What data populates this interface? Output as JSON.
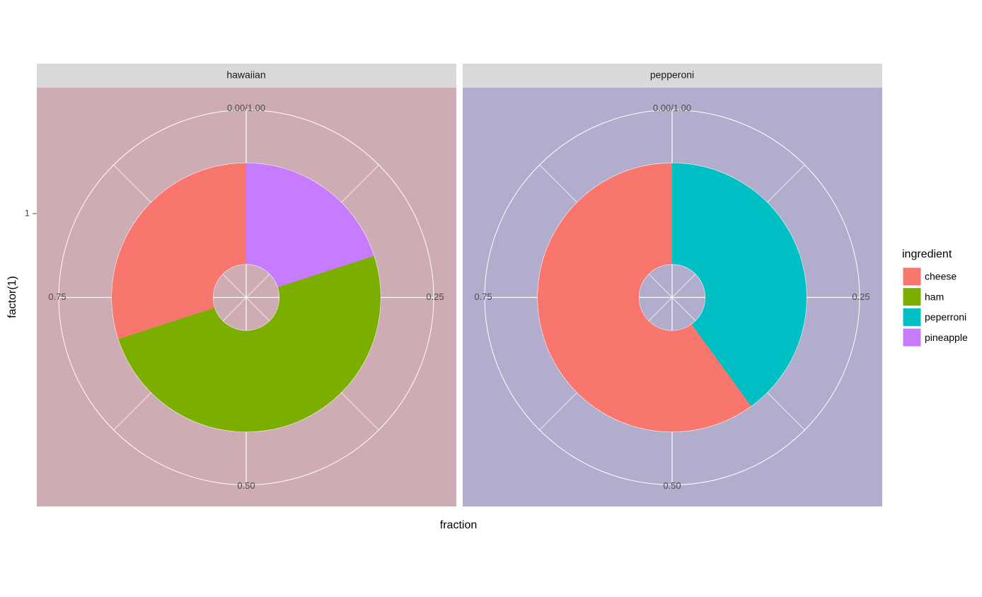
{
  "chart_data": {
    "type": "donut",
    "x_label": "fraction",
    "y_label": "factor(1)",
    "y_category": "1",
    "facets": [
      "hawaiian",
      "pepperoni"
    ],
    "panel_colors": [
      "#cdadb3",
      "#b3adcd"
    ],
    "angle_ticks": [
      {
        "value": 0,
        "label": "0.00/1.00"
      },
      0.25,
      {
        "value": 0.5,
        "label": "0.50"
      },
      0.75
    ],
    "legend_title": "ingredient",
    "legend_position": "right",
    "series": [
      {
        "name": "cheese",
        "color": "#F8766D",
        "values": [
          0.3,
          0.6
        ]
      },
      {
        "name": "ham",
        "color": "#7CAE00",
        "values": [
          0.5,
          null
        ]
      },
      {
        "name": "peperroni",
        "color": "#00BFC4",
        "values": [
          null,
          0.4
        ]
      },
      {
        "name": "pineapple",
        "color": "#C77CFF",
        "values": [
          0.2,
          null
        ]
      }
    ]
  }
}
